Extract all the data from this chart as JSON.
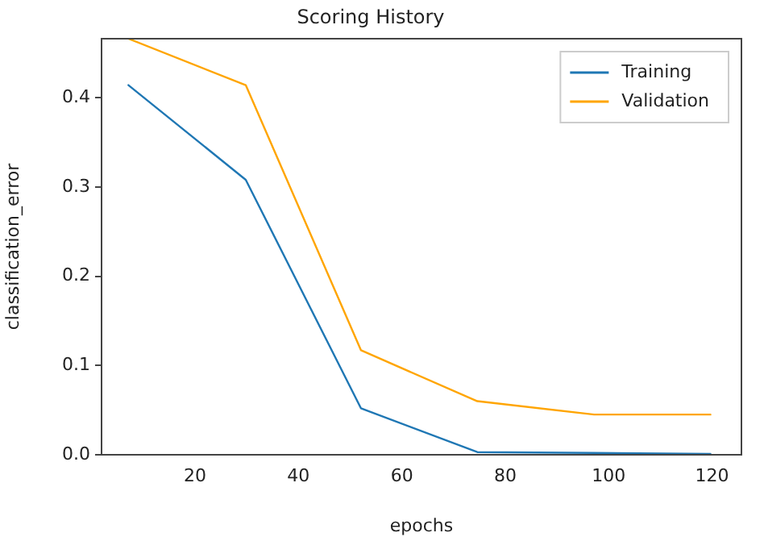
{
  "chart_data": {
    "type": "line",
    "title": "Scoring History",
    "xlabel": "epochs",
    "ylabel": "classification_error",
    "x": [
      7.1,
      29.8,
      52.1,
      74.6,
      97.2,
      119.7
    ],
    "series": [
      {
        "name": "Training",
        "color": "#1f77b4",
        "values": [
          0.414,
          0.308,
          0.052,
          0.003,
          0.002,
          0.001
        ]
      },
      {
        "name": "Validation",
        "color": "#ffa500",
        "values": [
          0.466,
          0.414,
          0.117,
          0.06,
          0.045,
          0.045
        ]
      }
    ],
    "xlim": [
      1.9,
      125.7
    ],
    "xticks": [
      20,
      40,
      60,
      80,
      100,
      120
    ],
    "ylim": [
      0,
      0.466
    ],
    "yticks": [
      {
        "value": 0,
        "label": "0.0"
      },
      0.1,
      0.2,
      0.3,
      0.4
    ],
    "grid": false,
    "legend": "top right",
    "marker": "none",
    "line_style": "solid"
  }
}
